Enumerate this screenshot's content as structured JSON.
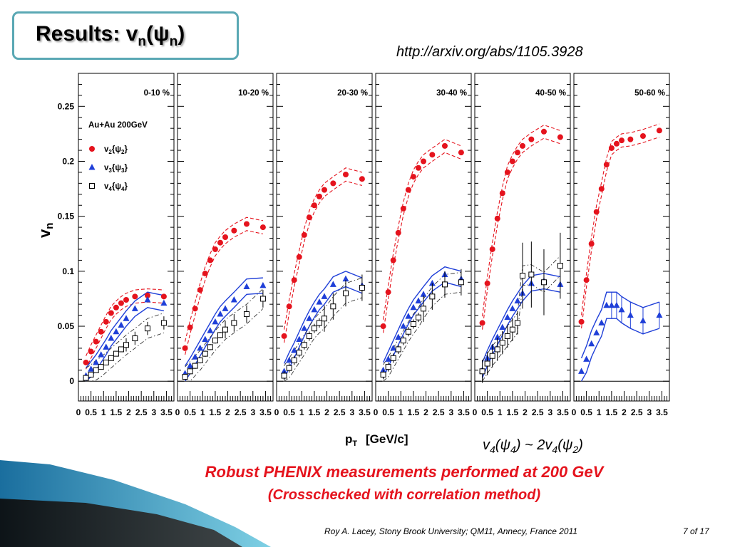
{
  "slide": {
    "title_main": "Results: v",
    "title_sub1": "n",
    "title_open": "(ψ",
    "title_sub2": "n",
    "title_close": ")",
    "url": "http://arxiv.org/abs/1105.3928",
    "note_part1": "v",
    "note_sub1": "4",
    "note_part2": "(ψ",
    "note_sub2": "4",
    "note_part3": ") ~ 2v",
    "note_sub3": "4",
    "note_part4": "(ψ",
    "note_sub4": "2",
    "note_part5": ")",
    "headline": "Robust PHENIX measurements performed at 200 GeV",
    "subline": "(Crosschecked with correlation method)",
    "footer": "Roy A. Lacey, Stony Brook University; QM11, Annecy, France 2011",
    "page": "7 of 17"
  },
  "colors": {
    "accent": "#5aa8b4",
    "v2": "#e5131d",
    "v3": "#1f3fd8",
    "v4": "#000000",
    "headline": "#e5131d"
  },
  "chart_data": {
    "type": "scatter",
    "ylabel": "v",
    "ylabel_sub": "n",
    "xlabel": "p",
    "xlabel_sub": "T",
    "xlabel_unit": "[GeV/c]",
    "system_label": "Au+Au 200GeV",
    "xlim": [
      0,
      3.8
    ],
    "ylim": [
      -0.018,
      0.28
    ],
    "x_ticks": [
      0,
      0.5,
      1,
      1.5,
      2,
      2.5,
      3,
      3.5
    ],
    "x_tick_labels": [
      "0",
      "0.5",
      "1",
      "1.5",
      "2",
      "2.5",
      "3",
      "3.5"
    ],
    "y_ticks": [
      0,
      0.05,
      0.1,
      0.15,
      0.2,
      0.25
    ],
    "y_tick_labels": [
      "0",
      "0.05",
      "0.1",
      "0.15",
      "0.2",
      "0.25"
    ],
    "legend": [
      {
        "key": "v2",
        "marker": "circle",
        "text": "v",
        "sub": "2",
        "brace_open": "{ψ",
        "brace_sub": "2",
        "brace_close": "}"
      },
      {
        "key": "v3",
        "marker": "triangle",
        "text": "v",
        "sub": "3",
        "brace_open": "{ψ",
        "brace_sub": "3",
        "brace_close": "}"
      },
      {
        "key": "v4",
        "marker": "square",
        "text": "v",
        "sub": "4",
        "brace_open": "{ψ",
        "brace_sub": "4",
        "brace_close": "}"
      }
    ],
    "panels": [
      {
        "label": "0-10 %",
        "v2": {
          "x": [
            0.3,
            0.5,
            0.7,
            0.9,
            1.1,
            1.3,
            1.5,
            1.7,
            1.9,
            2.25,
            2.75,
            3.4
          ],
          "y": [
            0.017,
            0.027,
            0.036,
            0.045,
            0.054,
            0.062,
            0.067,
            0.071,
            0.074,
            0.077,
            0.078,
            0.077
          ]
        },
        "v3": {
          "x": [
            0.3,
            0.5,
            0.7,
            0.9,
            1.1,
            1.3,
            1.5,
            1.7,
            1.9,
            2.25,
            2.75,
            3.4
          ],
          "y": [
            0.005,
            0.011,
            0.017,
            0.024,
            0.031,
            0.039,
            0.045,
            0.051,
            0.057,
            0.066,
            0.074,
            0.071
          ]
        },
        "v4": {
          "x": [
            0.3,
            0.5,
            0.7,
            0.9,
            1.1,
            1.3,
            1.5,
            1.7,
            1.9,
            2.25,
            2.75,
            3.4
          ],
          "y": [
            0.003,
            0.006,
            0.01,
            0.013,
            0.017,
            0.021,
            0.025,
            0.029,
            0.033,
            0.039,
            0.048,
            0.053
          ],
          "yerr": 0.006
        }
      },
      {
        "label": "10-20 %",
        "v2": {
          "x": [
            0.3,
            0.5,
            0.7,
            0.9,
            1.1,
            1.3,
            1.5,
            1.7,
            1.9,
            2.25,
            2.75,
            3.4
          ],
          "y": [
            0.03,
            0.049,
            0.066,
            0.083,
            0.098,
            0.11,
            0.12,
            0.126,
            0.131,
            0.137,
            0.143,
            0.14
          ]
        },
        "v3": {
          "x": [
            0.3,
            0.5,
            0.7,
            0.9,
            1.1,
            1.3,
            1.5,
            1.7,
            1.9,
            2.25,
            2.75,
            3.4
          ],
          "y": [
            0.007,
            0.014,
            0.022,
            0.03,
            0.038,
            0.046,
            0.054,
            0.061,
            0.066,
            0.074,
            0.086,
            0.087
          ]
        },
        "v4": {
          "x": [
            0.3,
            0.5,
            0.7,
            0.9,
            1.1,
            1.3,
            1.5,
            1.7,
            1.9,
            2.25,
            2.75,
            3.4
          ],
          "y": [
            0.004,
            0.009,
            0.014,
            0.019,
            0.025,
            0.031,
            0.037,
            0.042,
            0.047,
            0.053,
            0.061,
            0.075
          ],
          "yerr": 0.008
        }
      },
      {
        "label": "20-30 %",
        "v2": {
          "x": [
            0.3,
            0.5,
            0.7,
            0.9,
            1.1,
            1.3,
            1.5,
            1.7,
            1.9,
            2.25,
            2.75,
            3.4
          ],
          "y": [
            0.041,
            0.068,
            0.092,
            0.113,
            0.133,
            0.149,
            0.16,
            0.168,
            0.174,
            0.18,
            0.188,
            0.184
          ]
        },
        "v3": {
          "x": [
            0.3,
            0.5,
            0.7,
            0.9,
            1.1,
            1.3,
            1.5,
            1.7,
            1.9,
            2.25,
            2.75,
            3.4
          ],
          "y": [
            0.009,
            0.019,
            0.028,
            0.038,
            0.048,
            0.057,
            0.065,
            0.072,
            0.077,
            0.088,
            0.093,
            0.087
          ]
        },
        "v4": {
          "x": [
            0.3,
            0.5,
            0.7,
            0.9,
            1.1,
            1.3,
            1.5,
            1.7,
            1.9,
            2.25,
            2.75,
            3.4
          ],
          "y": [
            0.005,
            0.012,
            0.019,
            0.026,
            0.033,
            0.041,
            0.048,
            0.053,
            0.057,
            0.068,
            0.08,
            0.085
          ],
          "yerr": 0.012
        }
      },
      {
        "label": "30-40 %",
        "v2": {
          "x": [
            0.3,
            0.5,
            0.7,
            0.9,
            1.1,
            1.3,
            1.5,
            1.7,
            1.9,
            2.25,
            2.75,
            3.4
          ],
          "y": [
            0.05,
            0.081,
            0.11,
            0.135,
            0.157,
            0.174,
            0.186,
            0.194,
            0.2,
            0.206,
            0.214,
            0.208
          ]
        },
        "v3": {
          "x": [
            0.3,
            0.5,
            0.7,
            0.9,
            1.1,
            1.3,
            1.5,
            1.7,
            1.9,
            2.25,
            2.75,
            3.4
          ],
          "y": [
            0.01,
            0.02,
            0.03,
            0.04,
            0.05,
            0.059,
            0.067,
            0.073,
            0.079,
            0.089,
            0.097,
            0.093
          ]
        },
        "v4": {
          "x": [
            0.3,
            0.5,
            0.7,
            0.9,
            1.1,
            1.3,
            1.5,
            1.7,
            1.9,
            2.25,
            2.75,
            3.4
          ],
          "y": [
            0.006,
            0.013,
            0.021,
            0.029,
            0.037,
            0.045,
            0.052,
            0.058,
            0.066,
            0.077,
            0.088,
            0.09
          ],
          "yerr": 0.012
        }
      },
      {
        "label": "40-50 %",
        "v2": {
          "x": [
            0.3,
            0.5,
            0.7,
            0.9,
            1.1,
            1.3,
            1.5,
            1.7,
            1.9,
            2.25,
            2.75,
            3.4
          ],
          "y": [
            0.053,
            0.089,
            0.12,
            0.148,
            0.171,
            0.19,
            0.2,
            0.208,
            0.214,
            0.22,
            0.227,
            0.222
          ]
        },
        "v3": {
          "x": [
            0.3,
            0.5,
            0.7,
            0.9,
            1.1,
            1.3,
            1.5,
            1.7,
            1.9,
            2.25,
            2.75,
            3.4
          ],
          "y": [
            0.01,
            0.021,
            0.031,
            0.04,
            0.049,
            0.058,
            0.066,
            0.073,
            0.08,
            0.089,
            0.091,
            0.088
          ]
        },
        "v4": {
          "x": [
            0.3,
            0.5,
            0.7,
            0.9,
            1.1,
            1.3,
            1.5,
            1.7,
            1.9,
            2.25,
            2.75,
            3.4
          ],
          "y": [
            0.009,
            0.016,
            0.023,
            0.029,
            0.035,
            0.041,
            0.047,
            0.053,
            0.096,
            0.097,
            0.09,
            0.105
          ],
          "yerr": 0.03
        }
      },
      {
        "label": "50-60 %",
        "v2": {
          "x": [
            0.3,
            0.5,
            0.7,
            0.9,
            1.1,
            1.3,
            1.5,
            1.7,
            1.9,
            2.25,
            2.75,
            3.4
          ],
          "y": [
            0.054,
            0.092,
            0.125,
            0.154,
            0.175,
            0.197,
            0.212,
            0.216,
            0.219,
            0.22,
            0.223,
            0.228
          ]
        },
        "v3": {
          "x": [
            0.3,
            0.5,
            0.7,
            0.9,
            1.1,
            1.3,
            1.5,
            1.7,
            1.9,
            2.25,
            2.75,
            3.4
          ],
          "y": [
            0.009,
            0.02,
            0.034,
            0.044,
            0.053,
            0.069,
            0.069,
            0.069,
            0.065,
            0.06,
            0.055,
            0.06
          ]
        }
      }
    ]
  }
}
